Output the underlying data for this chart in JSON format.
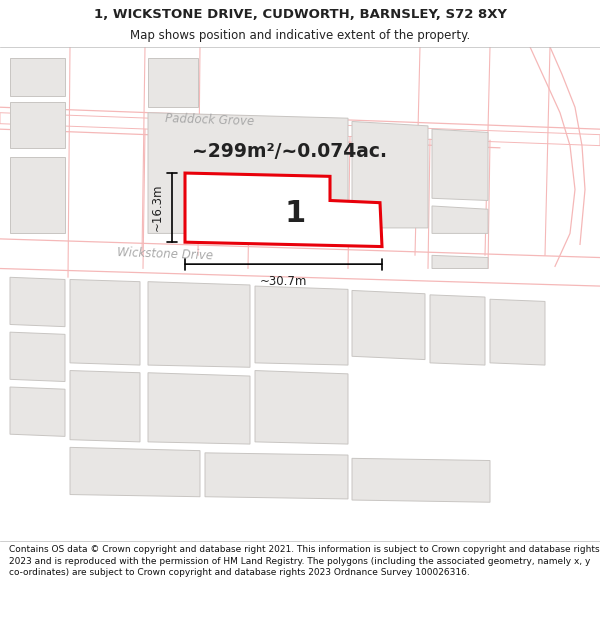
{
  "title_line1": "1, WICKSTONE DRIVE, CUDWORTH, BARNSLEY, S72 8XY",
  "title_line2": "Map shows position and indicative extent of the property.",
  "footer_text": "Contains OS data © Crown copyright and database right 2021. This information is subject to Crown copyright and database rights 2023 and is reproduced with the permission of HM Land Registry. The polygons (including the associated geometry, namely x, y co-ordinates) are subject to Crown copyright and database rights 2023 Ordnance Survey 100026316.",
  "area_text": "~299m²/~0.074ac.",
  "label_number": "1",
  "dim_width": "~30.7m",
  "dim_height": "~16.3m",
  "map_bg": "#ffffff",
  "highlight_color": "#e8000a",
  "boundary_color": "#f5b8b8",
  "building_fill": "#e8e6e4",
  "building_edge": "#c8c5c2",
  "text_color": "#222222",
  "road_text_color": "#aaaaaa",
  "title_fontsize": 9.5,
  "subtitle_fontsize": 8.5,
  "footer_fontsize": 6.5
}
